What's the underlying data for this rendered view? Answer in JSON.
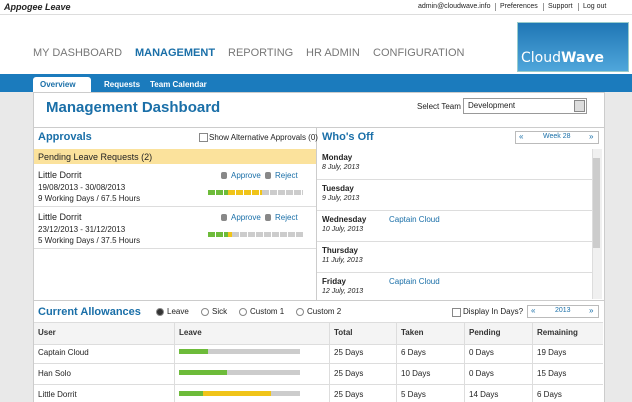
{
  "header": {
    "app_name": "Appogee Leave",
    "user_links": [
      "admin@cloudwave.info",
      "Preferences",
      "Support",
      "Log out"
    ]
  },
  "nav": [
    "MY DASHBOARD",
    "MANAGEMENT",
    "REPORTING",
    "HR ADMIN",
    "CONFIGURATION"
  ],
  "logo": [
    "Cloud",
    "Wave"
  ],
  "tabs": [
    "Overview",
    "Requests",
    "Team Calendar"
  ],
  "page_title": "Management Dashboard",
  "team_select": {
    "label": "Select Team",
    "value": "Development"
  },
  "approvals": {
    "title": "Approvals",
    "alt_checkbox": "Show Alternative Approvals (0)",
    "pending_header": "Pending Leave Requests (2)",
    "requests": [
      {
        "name": "Little Dorrit",
        "dates": "19/08/2013 - 30/08/2013",
        "duration": "9 Working Days / 67.5 Hours",
        "approve": "Approve",
        "reject": "Reject"
      },
      {
        "name": "Little Dorrit",
        "dates": "23/12/2013 - 31/12/2013",
        "duration": "5 Working Days / 37.5 Hours",
        "approve": "Approve",
        "reject": "Reject"
      }
    ]
  },
  "whos_off": {
    "title": "Who's Off",
    "week_nav": {
      "prev": "«",
      "label": "Week 28",
      "next": "»"
    },
    "days": [
      {
        "day": "Monday",
        "date": "8 July, 2013",
        "people": []
      },
      {
        "day": "Tuesday",
        "date": "9 July, 2013",
        "people": []
      },
      {
        "day": "Wednesday",
        "date": "10 July, 2013",
        "people": [
          "Captain Cloud"
        ]
      },
      {
        "day": "Thursday",
        "date": "11 July, 2013",
        "people": []
      },
      {
        "day": "Friday",
        "date": "12 July, 2013",
        "people": [
          "Captain Cloud"
        ]
      }
    ]
  },
  "allowances": {
    "title": "Current Allowances",
    "types": [
      "Leave",
      "Sick",
      "Custom 1",
      "Custom 2"
    ],
    "display_days": "Display In Days?",
    "year_nav": {
      "prev": "«",
      "label": "2013",
      "next": "»"
    },
    "columns": [
      "User",
      "Leave",
      "Total",
      "Taken",
      "Pending",
      "Remaining"
    ],
    "rows": [
      {
        "user": "Captain Cloud",
        "total": "25 Days",
        "taken": "6 Days",
        "pending": "0 Days",
        "remaining": "19 Days"
      },
      {
        "user": "Han Solo",
        "total": "25 Days",
        "taken": "10 Days",
        "pending": "0 Days",
        "remaining": "15 Days"
      },
      {
        "user": "Little Dorrit",
        "total": "25 Days",
        "taken": "5 Days",
        "pending": "14 Days",
        "remaining": "6 Days"
      }
    ]
  }
}
